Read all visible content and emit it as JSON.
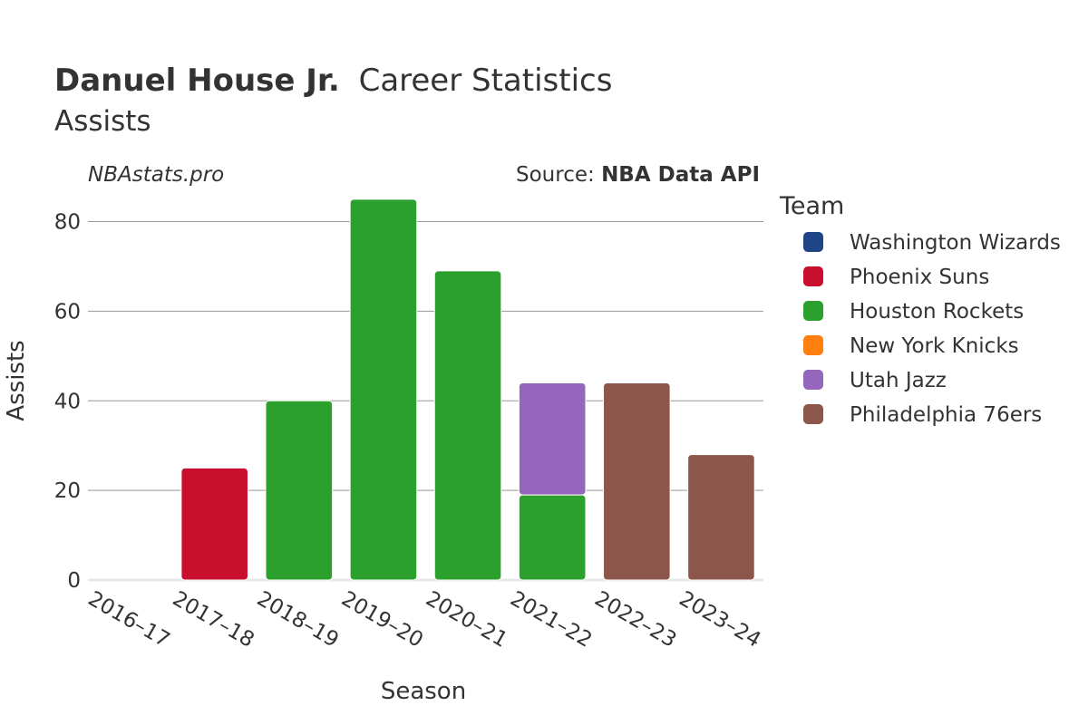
{
  "title": {
    "player": "Danuel House Jr.",
    "suffix": "Career Statistics",
    "subtitle": "Assists"
  },
  "watermark": "NBAstats.pro",
  "source": {
    "prefix": "Source: ",
    "name": "NBA Data API"
  },
  "legend": {
    "title": "Team",
    "items": [
      {
        "label": "Washington Wizards",
        "color": "#1f4589"
      },
      {
        "label": "Phoenix Suns",
        "color": "#c8102e"
      },
      {
        "label": "Houston Rockets",
        "color": "#2ca02c"
      },
      {
        "label": "New York Knicks",
        "color": "#ff7f0e"
      },
      {
        "label": "Utah Jazz",
        "color": "#9467bd"
      },
      {
        "label": "Philadelphia 76ers",
        "color": "#8c564b"
      }
    ]
  },
  "chart_data": {
    "type": "bar",
    "stacked": true,
    "xlabel": "Season",
    "ylabel": "Assists",
    "ylim": [
      0,
      88
    ],
    "yticks": [
      0,
      20,
      40,
      60,
      80
    ],
    "grid": true,
    "legend_position": "right",
    "categories": [
      "2016–17",
      "2017–18",
      "2018–19",
      "2019–20",
      "2020–21",
      "2021–22",
      "2022–23",
      "2023–24"
    ],
    "series": [
      {
        "name": "Washington Wizards",
        "color": "#1f4589",
        "values": [
          0,
          0,
          0,
          0,
          0,
          0,
          0,
          0
        ]
      },
      {
        "name": "Phoenix Suns",
        "color": "#c8102e",
        "values": [
          0,
          25,
          0,
          0,
          0,
          0,
          0,
          0
        ]
      },
      {
        "name": "Houston Rockets",
        "color": "#2ca02c",
        "values": [
          0,
          0,
          40,
          85,
          69,
          19,
          0,
          0
        ]
      },
      {
        "name": "New York Knicks",
        "color": "#ff7f0e",
        "values": [
          0,
          0,
          0,
          0,
          0,
          0,
          0,
          0
        ]
      },
      {
        "name": "Utah Jazz",
        "color": "#9467bd",
        "values": [
          0,
          0,
          0,
          0,
          0,
          25,
          0,
          0
        ]
      },
      {
        "name": "Philadelphia 76ers",
        "color": "#8c564b",
        "values": [
          0,
          0,
          0,
          0,
          0,
          0,
          44,
          28
        ]
      }
    ]
  }
}
